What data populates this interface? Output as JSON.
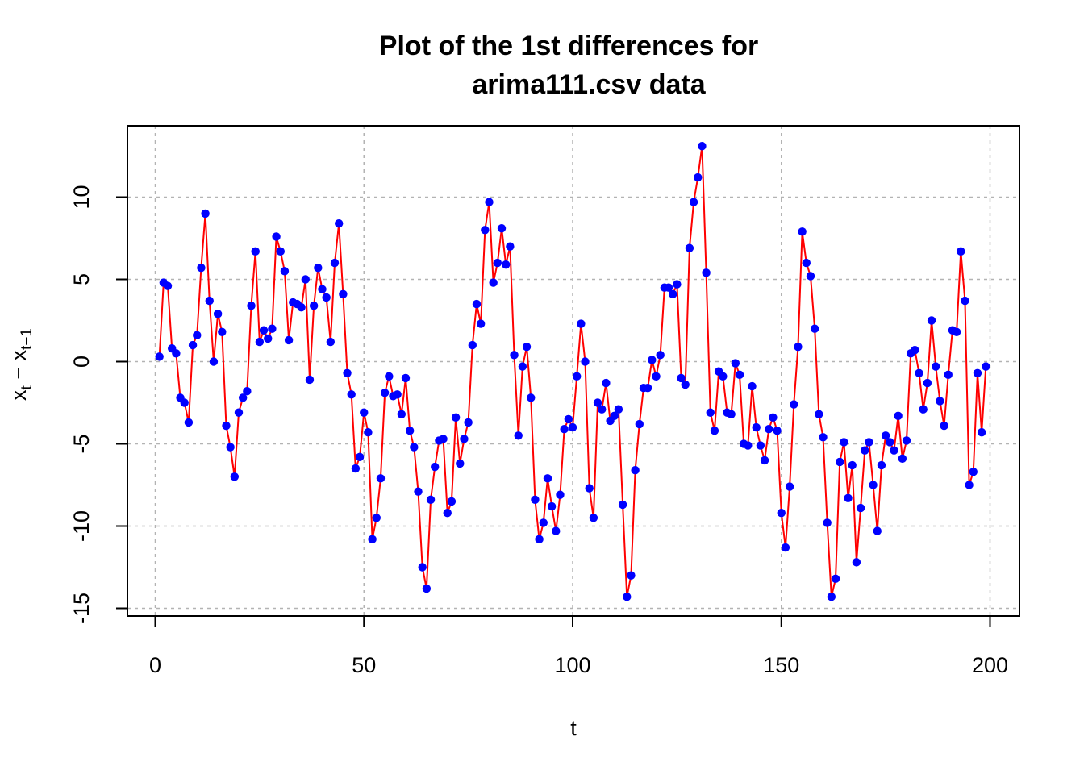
{
  "chart_data": {
    "type": "line",
    "title_line1": "Plot of the 1st differences for",
    "title_line2": "arima111.csv data",
    "xlabel": "t",
    "ylabel": {
      "x": "x",
      "sub1": "t",
      "minus": " − x",
      "sub2": "t−1"
    },
    "xlim": [
      0,
      200
    ],
    "ylim": [
      -15,
      13.5
    ],
    "xticks": [
      0,
      50,
      100,
      150,
      200
    ],
    "yticks": [
      -15,
      -10,
      -5,
      0,
      5,
      10
    ],
    "grid": true,
    "line_color": "#ff0000",
    "point_color": "#0000ff",
    "x": [
      1,
      2,
      3,
      4,
      5,
      6,
      7,
      8,
      9,
      10,
      11,
      12,
      13,
      14,
      15,
      16,
      17,
      18,
      19,
      20,
      21,
      22,
      23,
      24,
      25,
      26,
      27,
      28,
      29,
      30,
      31,
      32,
      33,
      34,
      35,
      36,
      37,
      38,
      39,
      40,
      41,
      42,
      43,
      44,
      45,
      46,
      47,
      48,
      49,
      50,
      51,
      52,
      53,
      54,
      55,
      56,
      57,
      58,
      59,
      60,
      61,
      62,
      63,
      64,
      65,
      66,
      67,
      68,
      69,
      70,
      71,
      72,
      73,
      74,
      75,
      76,
      77,
      78,
      79,
      80,
      81,
      82,
      83,
      84,
      85,
      86,
      87,
      88,
      89,
      90,
      91,
      92,
      93,
      94,
      95,
      96,
      97,
      98,
      99,
      100,
      101,
      102,
      103,
      104,
      105,
      106,
      107,
      108,
      109,
      110,
      111,
      112,
      113,
      114,
      115,
      116,
      117,
      118,
      119,
      120,
      121,
      122,
      123,
      124,
      125,
      126,
      127,
      128,
      129,
      130,
      131,
      132,
      133,
      134,
      135,
      136,
      137,
      138,
      139,
      140,
      141,
      142,
      143,
      144,
      145,
      146,
      147,
      148,
      149,
      150,
      151,
      152,
      153,
      154,
      155,
      156,
      157,
      158,
      159,
      160,
      161,
      162,
      163,
      164,
      165,
      166,
      167,
      168,
      169,
      170,
      171,
      172,
      173,
      174,
      175,
      176,
      177,
      178,
      179,
      180,
      181,
      182,
      183,
      184,
      185,
      186,
      187,
      188,
      189,
      190,
      191,
      192,
      193,
      194,
      195,
      196,
      197,
      198,
      199
    ],
    "y": [
      0.3,
      4.8,
      4.6,
      0.8,
      0.5,
      -2.2,
      -2.5,
      -3.7,
      1.0,
      1.6,
      5.7,
      9.0,
      3.7,
      0.0,
      2.9,
      1.8,
      -3.9,
      -5.2,
      -7.0,
      -3.1,
      -2.2,
      -1.8,
      3.4,
      6.7,
      1.2,
      1.9,
      1.4,
      2.0,
      7.6,
      6.7,
      5.5,
      1.3,
      3.6,
      3.5,
      3.3,
      5.0,
      -1.1,
      3.4,
      5.7,
      4.4,
      3.9,
      1.2,
      6.0,
      8.4,
      4.1,
      -0.7,
      -2.0,
      -6.5,
      -5.8,
      -3.1,
      -4.3,
      -10.8,
      -9.5,
      -7.1,
      -1.9,
      -0.9,
      -2.1,
      -2.0,
      -3.2,
      -1.0,
      -4.2,
      -5.2,
      -7.9,
      -12.5,
      -13.8,
      -8.4,
      -6.4,
      -4.8,
      -4.7,
      -9.2,
      -8.5,
      -3.4,
      -6.2,
      -4.7,
      -3.7,
      1.0,
      3.5,
      2.3,
      8.0,
      9.7,
      4.8,
      6.0,
      8.1,
      5.9,
      7.0,
      0.4,
      -4.5,
      -0.3,
      0.9,
      -2.2,
      -8.4,
      -10.8,
      -9.8,
      -7.1,
      -8.8,
      -10.3,
      -8.1,
      -4.1,
      -3.5,
      -4.0,
      -0.9,
      2.3,
      0.0,
      -7.7,
      -9.5,
      -2.5,
      -2.9,
      -1.3,
      -3.6,
      -3.3,
      -2.9,
      -8.7,
      -14.3,
      -13.0,
      -6.6,
      -3.8,
      -1.6,
      -1.6,
      0.1,
      -0.9,
      0.4,
      4.5,
      4.5,
      4.1,
      4.7,
      -1.0,
      -1.4,
      6.9,
      9.7,
      11.2,
      13.1,
      5.4,
      -3.1,
      -4.2,
      -0.6,
      -0.9,
      -3.1,
      -3.2,
      -0.1,
      -0.8,
      -5.0,
      -5.1,
      -1.5,
      -4.0,
      -5.1,
      -6.0,
      -4.1,
      -3.4,
      -4.2,
      -9.2,
      -11.3,
      -7.6,
      -2.6,
      0.9,
      7.9,
      6.0,
      5.2,
      2.0,
      -3.2,
      -4.6,
      -9.8,
      -14.3,
      -13.2,
      -6.1,
      -4.9,
      -8.3,
      -6.3,
      -12.2,
      -8.9,
      -5.4,
      -4.9,
      -7.5,
      -10.3,
      -6.3,
      -4.5,
      -4.9,
      -5.4,
      -3.3,
      -5.9,
      -4.8,
      0.5,
      0.7,
      -0.7,
      -2.9,
      -1.3,
      2.5,
      -0.3,
      -2.4,
      -3.9,
      -0.8,
      1.9,
      1.8,
      6.7,
      3.7,
      -7.5,
      -6.7,
      -0.7,
      -4.3,
      -0.3
    ]
  }
}
